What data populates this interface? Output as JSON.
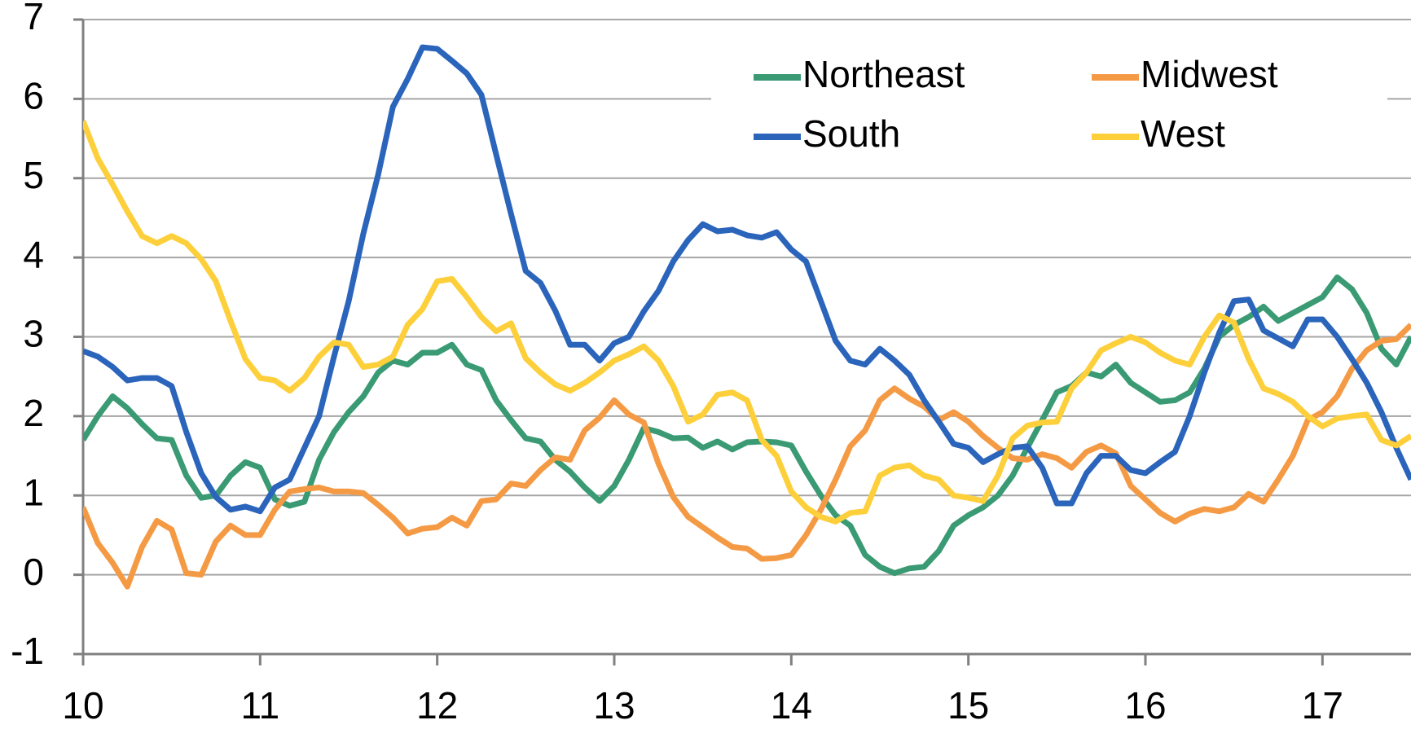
{
  "chart_data": {
    "type": "line",
    "x": [
      10,
      10.083,
      10.167,
      10.25,
      10.333,
      10.417,
      10.5,
      10.583,
      10.667,
      10.75,
      10.833,
      10.917,
      11,
      11.083,
      11.167,
      11.25,
      11.333,
      11.417,
      11.5,
      11.583,
      11.667,
      11.75,
      11.833,
      11.917,
      12,
      12.083,
      12.167,
      12.25,
      12.333,
      12.417,
      12.5,
      12.583,
      12.667,
      12.75,
      12.833,
      12.917,
      13,
      13.083,
      13.167,
      13.25,
      13.333,
      13.417,
      13.5,
      13.583,
      13.667,
      13.75,
      13.833,
      13.917,
      14,
      14.083,
      14.167,
      14.25,
      14.333,
      14.417,
      14.5,
      14.583,
      14.667,
      14.75,
      14.833,
      14.917,
      15,
      15.083,
      15.167,
      15.25,
      15.333,
      15.417,
      15.5,
      15.583,
      15.667,
      15.75,
      15.833,
      15.917,
      16,
      16.083,
      16.167,
      16.25,
      16.333,
      16.417,
      16.5,
      16.583,
      16.667,
      16.75,
      16.833,
      16.917,
      17,
      17.083,
      17.167,
      17.25,
      17.333,
      17.417,
      17.5
    ],
    "series": [
      {
        "name": "Northeast",
        "color": "#3a9a73",
        "values": [
          1.7,
          2.0,
          2.25,
          2.1,
          1.9,
          1.72,
          1.7,
          1.25,
          0.97,
          1.0,
          1.25,
          1.42,
          1.35,
          0.95,
          0.87,
          0.92,
          1.45,
          1.8,
          2.05,
          2.25,
          2.55,
          2.7,
          2.65,
          2.8,
          2.8,
          2.9,
          2.65,
          2.58,
          2.2,
          1.95,
          1.72,
          1.68,
          1.45,
          1.3,
          1.1,
          0.93,
          1.12,
          1.45,
          1.85,
          1.8,
          1.72,
          1.73,
          1.6,
          1.68,
          1.58,
          1.67,
          1.68,
          1.67,
          1.63,
          1.3,
          1.0,
          0.75,
          0.62,
          0.25,
          0.1,
          0.02,
          0.08,
          0.1,
          0.3,
          0.62,
          0.75,
          0.85,
          1.0,
          1.25,
          1.6,
          1.95,
          2.3,
          2.38,
          2.55,
          2.5,
          2.65,
          2.42,
          2.3,
          2.18,
          2.2,
          2.3,
          2.6,
          3.0,
          3.15,
          3.25,
          3.38,
          3.2,
          3.3,
          3.4,
          3.5,
          3.75,
          3.6,
          3.3,
          2.85,
          2.65,
          3.0
        ]
      },
      {
        "name": "Midwest",
        "color": "#f59a44",
        "values": [
          0.85,
          0.4,
          0.15,
          -0.15,
          0.35,
          0.68,
          0.57,
          0.02,
          0.0,
          0.42,
          0.62,
          0.5,
          0.5,
          0.82,
          1.05,
          1.08,
          1.1,
          1.05,
          1.05,
          1.03,
          0.88,
          0.72,
          0.52,
          0.58,
          0.6,
          0.72,
          0.62,
          0.93,
          0.95,
          1.15,
          1.12,
          1.32,
          1.48,
          1.45,
          1.82,
          1.98,
          2.2,
          2.02,
          1.92,
          1.4,
          0.98,
          0.73,
          0.6,
          0.47,
          0.35,
          0.33,
          0.2,
          0.21,
          0.25,
          0.5,
          0.82,
          1.2,
          1.62,
          1.82,
          2.2,
          2.35,
          2.22,
          2.12,
          1.95,
          2.05,
          1.93,
          1.75,
          1.6,
          1.47,
          1.45,
          1.52,
          1.47,
          1.35,
          1.55,
          1.63,
          1.53,
          1.12,
          0.95,
          0.78,
          0.67,
          0.77,
          0.83,
          0.8,
          0.85,
          1.02,
          0.92,
          1.2,
          1.5,
          1.95,
          2.05,
          2.25,
          2.6,
          2.83,
          2.95,
          2.97,
          3.15
        ]
      },
      {
        "name": "South",
        "color": "#2a64bb",
        "values": [
          2.82,
          2.75,
          2.62,
          2.45,
          2.48,
          2.48,
          2.38,
          1.8,
          1.28,
          0.98,
          0.82,
          0.86,
          0.8,
          1.1,
          1.2,
          1.6,
          2.0,
          2.75,
          3.45,
          4.3,
          5.05,
          5.9,
          6.25,
          6.65,
          6.63,
          6.48,
          6.32,
          6.05,
          5.3,
          4.55,
          3.83,
          3.68,
          3.33,
          2.9,
          2.9,
          2.7,
          2.92,
          3.0,
          3.32,
          3.58,
          3.95,
          4.22,
          4.42,
          4.33,
          4.35,
          4.28,
          4.25,
          4.32,
          4.1,
          3.95,
          3.45,
          2.95,
          2.7,
          2.65,
          2.85,
          2.7,
          2.52,
          2.2,
          1.93,
          1.65,
          1.6,
          1.42,
          1.52,
          1.6,
          1.62,
          1.35,
          0.9,
          0.9,
          1.28,
          1.5,
          1.5,
          1.32,
          1.28,
          1.42,
          1.55,
          2.0,
          2.55,
          3.05,
          3.45,
          3.47,
          3.08,
          2.98,
          2.88,
          3.22,
          3.22,
          3.0,
          2.72,
          2.42,
          2.05,
          1.6,
          1.2
        ]
      },
      {
        "name": "West",
        "color": "#fdcf3a",
        "values": [
          5.72,
          5.25,
          4.92,
          4.58,
          4.27,
          4.18,
          4.27,
          4.18,
          3.98,
          3.7,
          3.2,
          2.72,
          2.48,
          2.45,
          2.32,
          2.48,
          2.75,
          2.93,
          2.9,
          2.62,
          2.65,
          2.75,
          3.15,
          3.35,
          3.7,
          3.73,
          3.5,
          3.25,
          3.07,
          3.17,
          2.73,
          2.55,
          2.4,
          2.32,
          2.42,
          2.55,
          2.7,
          2.78,
          2.88,
          2.7,
          2.38,
          1.93,
          2.02,
          2.27,
          2.3,
          2.2,
          1.7,
          1.5,
          1.05,
          0.85,
          0.73,
          0.67,
          0.78,
          0.8,
          1.25,
          1.35,
          1.38,
          1.25,
          1.2,
          1.0,
          0.97,
          0.93,
          1.25,
          1.72,
          1.88,
          1.92,
          1.93,
          2.35,
          2.55,
          2.83,
          2.92,
          3.0,
          2.93,
          2.8,
          2.7,
          2.65,
          3.0,
          3.27,
          3.18,
          2.72,
          2.35,
          2.28,
          2.18,
          2.0,
          1.87,
          1.97,
          2.0,
          2.02,
          1.7,
          1.63,
          1.75
        ]
      }
    ],
    "xlim": [
      10,
      17.5
    ],
    "xticks": [
      10,
      11,
      12,
      13,
      14,
      15,
      16,
      17
    ],
    "ylim": [
      -1,
      7
    ],
    "yticks": [
      -1,
      0,
      1,
      2,
      3,
      4,
      5,
      6,
      7
    ],
    "grid": true,
    "legend": "upper right"
  }
}
